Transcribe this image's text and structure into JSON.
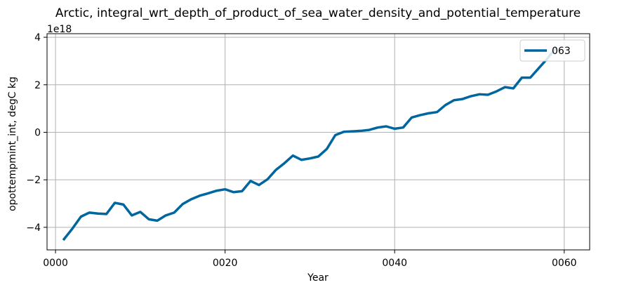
{
  "chart_data": {
    "type": "line",
    "title": "Arctic, integral_wrt_depth_of_product_of_sea_water_density_and_potential_temperature",
    "xlabel": "Year",
    "ylabel": "opottempmint_int, degC kg",
    "offset_text": "1e18",
    "xlim": [
      -1.0,
      63.0
    ],
    "ylim": [
      -4.95,
      4.15
    ],
    "xticks": [
      0,
      20,
      40,
      60
    ],
    "xtick_labels": [
      "0000",
      "0020",
      "0040",
      "0060"
    ],
    "yticks": [
      -4,
      -2,
      0,
      2,
      4
    ],
    "ytick_labels": [
      "−4",
      "−2",
      "0",
      "2",
      "4"
    ],
    "grid": true,
    "legend_position": "upper right",
    "series": [
      {
        "name": "063",
        "color": "#0066a0",
        "x": [
          1,
          2,
          3,
          4,
          5,
          6,
          7,
          8,
          9,
          10,
          11,
          12,
          13,
          14,
          15,
          16,
          17,
          18,
          19,
          20,
          21,
          22,
          23,
          24,
          25,
          26,
          27,
          28,
          29,
          30,
          31,
          32,
          33,
          34,
          35,
          36,
          37,
          38,
          39,
          40,
          41,
          42,
          43,
          44,
          45,
          46,
          47,
          48,
          49,
          50,
          51,
          52,
          53,
          54,
          55,
          56,
          57,
          58,
          59
        ],
        "values": [
          -4.5,
          -4.05,
          -3.55,
          -3.38,
          -3.42,
          -3.44,
          -2.97,
          -3.04,
          -3.5,
          -3.35,
          -3.66,
          -3.72,
          -3.5,
          -3.38,
          -3.02,
          -2.82,
          -2.67,
          -2.57,
          -2.46,
          -2.4,
          -2.52,
          -2.48,
          -2.05,
          -2.22,
          -1.98,
          -1.58,
          -1.3,
          -0.98,
          -1.16,
          -1.1,
          -1.02,
          -0.7,
          -0.12,
          0.02,
          0.04,
          0.06,
          0.1,
          0.2,
          0.25,
          0.15,
          0.2,
          0.62,
          0.72,
          0.8,
          0.85,
          1.15,
          1.35,
          1.4,
          1.52,
          1.6,
          1.58,
          1.72,
          1.9,
          1.85,
          2.3,
          2.3,
          2.7,
          3.1,
          3.55
        ]
      }
    ]
  }
}
